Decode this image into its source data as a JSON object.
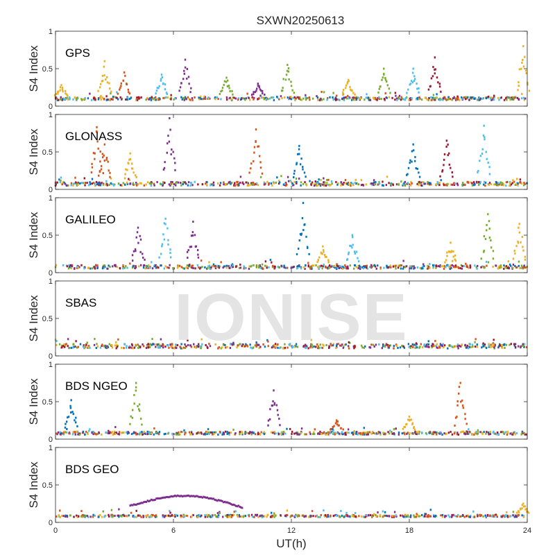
{
  "chart_data": {
    "type": "scatter",
    "title": "SXWN20250613",
    "xlabel": "UT(h)",
    "ylabel": "S4 Index",
    "xlim": [
      0,
      24
    ],
    "ylim": [
      0,
      1
    ],
    "x_ticks": [
      0,
      6,
      12,
      18,
      24
    ],
    "y_ticks": [
      0,
      0.5,
      1
    ],
    "y_tick_labels": [
      "0",
      "0.5",
      "1"
    ],
    "watermark": "IONISE",
    "palette": [
      "#0072BD",
      "#D95319",
      "#EDB120",
      "#7E2F8E",
      "#77AC30",
      "#4DBEEE",
      "#A2142F"
    ],
    "panels": [
      {
        "name": "GPS",
        "baseline": [
          0.08,
          0.12
        ],
        "spikes": [
          {
            "x": 0.3,
            "y": 0.28,
            "c": 2
          },
          {
            "x": 2.5,
            "y": 0.6,
            "c": 2
          },
          {
            "x": 3.5,
            "y": 0.45,
            "c": 1
          },
          {
            "x": 5.4,
            "y": 0.42,
            "c": 5
          },
          {
            "x": 6.6,
            "y": 0.62,
            "c": 3
          },
          {
            "x": 8.7,
            "y": 0.38,
            "c": 4
          },
          {
            "x": 10.3,
            "y": 0.3,
            "c": 3
          },
          {
            "x": 11.8,
            "y": 0.55,
            "c": 4
          },
          {
            "x": 14.9,
            "y": 0.35,
            "c": 2
          },
          {
            "x": 16.7,
            "y": 0.5,
            "c": 4
          },
          {
            "x": 18.2,
            "y": 0.5,
            "c": 5
          },
          {
            "x": 19.3,
            "y": 0.65,
            "c": 6
          },
          {
            "x": 23.8,
            "y": 0.8,
            "c": 2
          }
        ]
      },
      {
        "name": "GLONASS",
        "baseline": [
          0.05,
          0.1
        ],
        "spikes": [
          {
            "x": 2.1,
            "y": 0.83,
            "c": 1
          },
          {
            "x": 2.5,
            "y": 0.6,
            "c": 1
          },
          {
            "x": 3.8,
            "y": 0.48,
            "c": 2
          },
          {
            "x": 5.8,
            "y": 0.95,
            "c": 3
          },
          {
            "x": 10.2,
            "y": 0.8,
            "c": 1
          },
          {
            "x": 12.4,
            "y": 0.58,
            "c": 0
          },
          {
            "x": 18.2,
            "y": 0.6,
            "c": 0
          },
          {
            "x": 19.9,
            "y": 0.65,
            "c": 6
          },
          {
            "x": 21.8,
            "y": 0.85,
            "c": 5
          }
        ]
      },
      {
        "name": "GALILEO",
        "baseline": [
          0.05,
          0.1
        ],
        "spikes": [
          {
            "x": 4.2,
            "y": 0.6,
            "c": 3
          },
          {
            "x": 5.6,
            "y": 0.72,
            "c": 5
          },
          {
            "x": 7.0,
            "y": 0.68,
            "c": 3
          },
          {
            "x": 12.6,
            "y": 0.93,
            "c": 0
          },
          {
            "x": 13.6,
            "y": 0.35,
            "c": 2
          },
          {
            "x": 15.1,
            "y": 0.5,
            "c": 5
          },
          {
            "x": 20.1,
            "y": 0.4,
            "c": 2
          },
          {
            "x": 22.0,
            "y": 0.78,
            "c": 4
          },
          {
            "x": 23.6,
            "y": 0.65,
            "c": 2
          }
        ]
      },
      {
        "name": "SBAS",
        "baseline": [
          0.1,
          0.16
        ],
        "spikes": []
      },
      {
        "name": "BDS NGEO",
        "baseline": [
          0.06,
          0.1
        ],
        "spikes": [
          {
            "x": 0.8,
            "y": 0.52,
            "c": 0
          },
          {
            "x": 4.1,
            "y": 0.75,
            "c": 4
          },
          {
            "x": 11.1,
            "y": 0.65,
            "c": 3
          },
          {
            "x": 14.3,
            "y": 0.25,
            "c": 1
          },
          {
            "x": 18.0,
            "y": 0.3,
            "c": 2
          },
          {
            "x": 20.6,
            "y": 0.75,
            "c": 1
          }
        ]
      },
      {
        "name": "BDS GEO",
        "baseline": [
          0.07,
          0.1
        ],
        "spikes": [
          {
            "x": 23.8,
            "y": 0.25,
            "c": 2
          }
        ],
        "arc": {
          "x_start": 3.8,
          "x_end": 9.5,
          "y_start": 0.22,
          "y_peak": 0.31,
          "y_end": 0.2,
          "c": 3
        }
      }
    ]
  }
}
